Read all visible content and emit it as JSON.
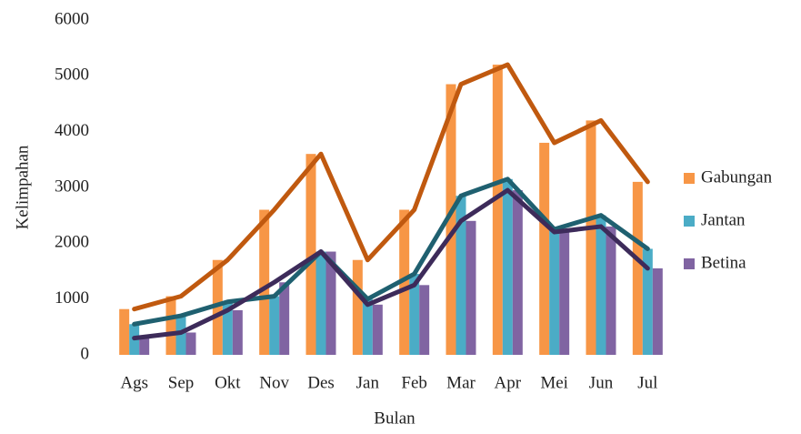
{
  "chart_data": {
    "type": "bar",
    "line_overlay": true,
    "x_label": "Bulan",
    "y_label": "Kelimpahan",
    "categories": [
      "Ags",
      "Sep",
      "Okt",
      "Nov",
      "Des",
      "Jan",
      "Feb",
      "Mar",
      "Apr",
      "Mei",
      "Jun",
      "Jul"
    ],
    "series": [
      {
        "name": "Gabungan",
        "color": "#f79646",
        "line_color": "#c0590f",
        "values": [
          820,
          1050,
          1700,
          2600,
          3600,
          1700,
          2600,
          4850,
          5200,
          3800,
          4200,
          3100
        ]
      },
      {
        "name": "Jantan",
        "color": "#4bacc6",
        "line_color": "#1f6070",
        "values": [
          550,
          700,
          950,
          1050,
          1850,
          1000,
          1450,
          2850,
          3150,
          2250,
          2500,
          1900
        ]
      },
      {
        "name": "Betina",
        "color": "#8064a2",
        "line_color": "#3d2b5a",
        "values": [
          300,
          400,
          800,
          1300,
          1850,
          900,
          1250,
          2400,
          2950,
          2200,
          2300,
          1550
        ]
      }
    ],
    "ylim": [
      0,
      6000
    ],
    "yticks": [
      0,
      1000,
      2000,
      3000,
      4000,
      5000,
      6000
    ],
    "legend": "right"
  }
}
